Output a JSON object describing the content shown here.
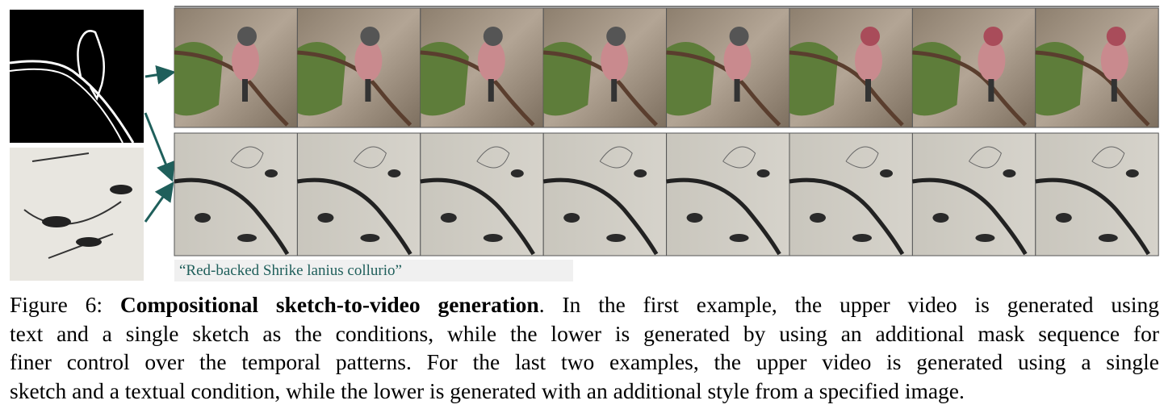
{
  "prompt": "“Red-backed Shrike lanius collurio”",
  "caption": {
    "label": "Figure 6:",
    "title": "Compositional sketch-to-video generation",
    "lines": [
      ". In the first example, the upper video is generated using",
      "text and a single sketch as the conditions, while the lower is generated by using an additional mask sequence for",
      "finer control over the temporal patterns. For the last two examples, the upper video is generated using a single",
      "sketch and a textual condition, while the lower is generated with an additional style from a specified image."
    ]
  }
}
